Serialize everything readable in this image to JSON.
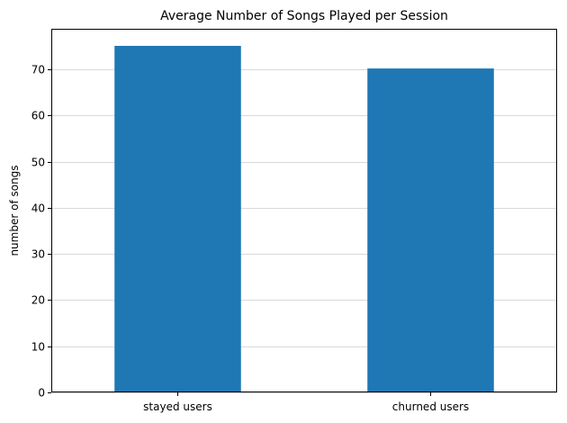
{
  "chart_data": {
    "type": "bar",
    "title": "Average Number of Songs Played per Session",
    "xlabel": "",
    "ylabel": "number of songs",
    "categories": [
      "stayed users",
      "churned users"
    ],
    "values": [
      75.1,
      70.2
    ],
    "ylim": [
      0,
      78.8
    ],
    "yticks": [
      0,
      10,
      20,
      30,
      40,
      50,
      60,
      70
    ],
    "grid": {
      "y": true,
      "x": false
    },
    "bar_color": "#1f77b4",
    "grid_color": "#d9d9d9"
  }
}
